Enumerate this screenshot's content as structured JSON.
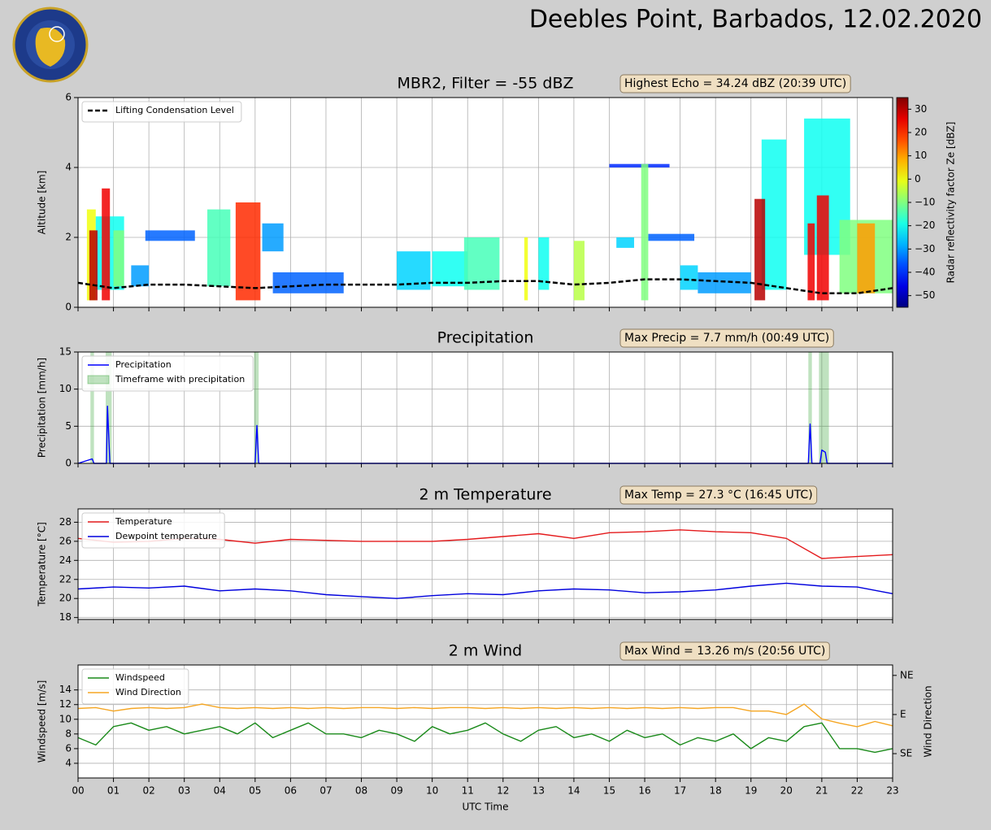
{
  "title": "Deebles Point, Barbados, 12.02.2020",
  "chart_data": [
    {
      "type": "heatmap",
      "title": "MBR2, Filter = -55 dBZ",
      "annotation": "Highest Echo = 34.24 dBZ (20:39 UTC)",
      "ylabel": "Altitude [km]",
      "xlim": [
        0,
        23
      ],
      "ylim": [
        0,
        6
      ],
      "yticks": [
        0,
        2,
        4,
        6
      ],
      "grid": true,
      "legend": "upper left",
      "colorbar": {
        "label": "Radar reflectivity factor Ze [dBZ]",
        "lim": [
          -55,
          35
        ],
        "colormap": "jet",
        "ticks": [
          30,
          20,
          10,
          0,
          {
            "value": -10,
            "label": "−10"
          },
          {
            "value": -20,
            "label": "−20"
          },
          {
            "value": -30,
            "label": "−30"
          },
          {
            "value": -40,
            "label": "−40"
          },
          {
            "value": -50,
            "label": "−50"
          }
        ]
      },
      "echoes": [
        {
          "x0": 0.25,
          "x1": 0.5,
          "bottom": 0.2,
          "top": 2.8,
          "value": 0
        },
        {
          "x0": 0.5,
          "x1": 1.3,
          "bottom": 0.5,
          "top": 2.6,
          "value": -20
        },
        {
          "x0": 1.0,
          "x1": 1.3,
          "bottom": 0.6,
          "top": 2.2,
          "value": -10
        },
        {
          "x0": 1.5,
          "x1": 2.0,
          "bottom": 0.6,
          "top": 1.2,
          "value": -30
        },
        {
          "x0": 1.9,
          "x1": 3.3,
          "bottom": 1.9,
          "top": 2.2,
          "value": -35
        },
        {
          "x0": 3.65,
          "x1": 4.3,
          "bottom": 0.6,
          "top": 2.8,
          "value": -15
        },
        {
          "x0": 5.2,
          "x1": 5.8,
          "bottom": 1.6,
          "top": 2.4,
          "value": -30
        },
        {
          "x0": 5.5,
          "x1": 7.5,
          "bottom": 0.4,
          "top": 1.0,
          "value": -35
        },
        {
          "x0": 9.0,
          "x1": 9.95,
          "bottom": 0.5,
          "top": 1.6,
          "value": -25
        },
        {
          "x0": 10.0,
          "x1": 11.0,
          "bottom": 0.6,
          "top": 1.6,
          "value": -20
        },
        {
          "x0": 10.9,
          "x1": 11.9,
          "bottom": 0.5,
          "top": 2.0,
          "value": -15
        },
        {
          "x0": 13.0,
          "x1": 13.3,
          "bottom": 0.5,
          "top": 2.0,
          "value": -20
        },
        {
          "x0": 15.2,
          "x1": 15.7,
          "bottom": 1.7,
          "top": 2.0,
          "value": -25
        },
        {
          "x0": 15.0,
          "x1": 16.7,
          "bottom": 4.0,
          "top": 4.1,
          "value": -40
        },
        {
          "x0": 16.1,
          "x1": 17.4,
          "bottom": 1.9,
          "top": 2.1,
          "value": -35
        },
        {
          "x0": 17.0,
          "x1": 17.5,
          "bottom": 0.5,
          "top": 1.2,
          "value": -25
        },
        {
          "x0": 17.5,
          "x1": 19.0,
          "bottom": 0.4,
          "top": 1.0,
          "value": -30
        },
        {
          "x0": 19.3,
          "x1": 20.0,
          "bottom": 0.5,
          "top": 4.8,
          "value": -20
        },
        {
          "x0": 20.5,
          "x1": 21.8,
          "bottom": 1.5,
          "top": 5.4,
          "value": -20
        },
        {
          "x0": 21.5,
          "x1": 23.0,
          "bottom": 0.4,
          "top": 2.5,
          "value": -10
        },
        {
          "x0": 12.6,
          "x1": 12.7,
          "bottom": 0.2,
          "top": 2.0,
          "value": 0
        },
        {
          "x0": 14.0,
          "x1": 14.3,
          "bottom": 0.2,
          "top": 1.9,
          "value": -5
        },
        {
          "x0": 15.9,
          "x1": 16.1,
          "bottom": 0.2,
          "top": 4.1,
          "value": -10
        },
        {
          "x0": 22.0,
          "x1": 22.5,
          "bottom": 0.4,
          "top": 2.4,
          "value": 10
        },
        {
          "x0": 0.32,
          "x1": 0.55,
          "bottom": 0.2,
          "top": 2.2,
          "value": 30
        },
        {
          "x0": 0.67,
          "x1": 0.9,
          "bottom": 0.2,
          "top": 3.4,
          "value": 25
        },
        {
          "x0": 4.45,
          "x1": 5.15,
          "bottom": 0.2,
          "top": 3.0,
          "value": 20
        },
        {
          "x0": 19.1,
          "x1": 19.4,
          "bottom": 0.2,
          "top": 3.1,
          "value": 30
        },
        {
          "x0": 20.6,
          "x1": 20.8,
          "bottom": 0.2,
          "top": 2.4,
          "value": 25
        },
        {
          "x0": 20.86,
          "x1": 21.2,
          "bottom": 0.2,
          "top": 3.2,
          "value": 25
        }
      ],
      "x": [
        0,
        1,
        2,
        3,
        4,
        5,
        6,
        7,
        8,
        9,
        10,
        11,
        12,
        13,
        14,
        15,
        16,
        17,
        18,
        19,
        20,
        21,
        22,
        23
      ],
      "series": [
        {
          "name": "Lifting Condensation Level",
          "color": "#000000",
          "linestyle": "dashed",
          "values": [
            0.7,
            0.55,
            0.65,
            0.65,
            0.6,
            0.55,
            0.6,
            0.65,
            0.65,
            0.65,
            0.7,
            0.7,
            0.75,
            0.75,
            0.65,
            0.7,
            0.8,
            0.8,
            0.75,
            0.7,
            0.55,
            0.4,
            0.4,
            0.55
          ]
        }
      ]
    },
    {
      "type": "line",
      "title": "Precipitation",
      "annotation": "Max Precip = 7.7 mm/h (00:49 UTC)",
      "ylabel": "Precipitation [mm/h]",
      "xlim": [
        0,
        23
      ],
      "ylim": [
        0,
        15
      ],
      "yticks": [
        0,
        5,
        10,
        15
      ],
      "grid": true,
      "legend": "upper left",
      "x": [
        0,
        0.4,
        0.45,
        0.8,
        0.83,
        0.9,
        5.0,
        5.05,
        5.1,
        20.62,
        20.67,
        20.72,
        20.95,
        21.0,
        21.1,
        21.15,
        23
      ],
      "series": [
        {
          "name": "Precipitation",
          "color": "#0000ff",
          "values": [
            0,
            0.6,
            0,
            0,
            7.7,
            0,
            0,
            5.1,
            0,
            0,
            5.3,
            0,
            0,
            1.8,
            1.5,
            0,
            0
          ]
        }
      ],
      "spans": {
        "name": "Timeframe with precipitation",
        "color": "#2ca02c",
        "ranges": [
          [
            0.35,
            0.45
          ],
          [
            0.78,
            0.95
          ],
          [
            4.97,
            5.1
          ],
          [
            20.62,
            20.72
          ],
          [
            20.92,
            21.2
          ]
        ]
      }
    },
    {
      "type": "line",
      "title": "2 m Temperature",
      "annotation": "Max Temp = 27.3 °C (16:45 UTC)",
      "ylabel": "Temperature [°C]",
      "xlim": [
        0,
        23
      ],
      "ylim": [
        17.8,
        29.4
      ],
      "yticks": [
        18,
        20,
        22,
        24,
        26,
        28
      ],
      "grid": true,
      "legend": "upper left",
      "x": [
        0,
        1,
        2,
        3,
        4,
        5,
        6,
        7,
        8,
        9,
        10,
        11,
        12,
        13,
        14,
        15,
        16,
        17,
        18,
        19,
        20,
        21,
        22,
        23
      ],
      "series": [
        {
          "name": "Temperature",
          "color": "#e41a1c",
          "values": [
            26.3,
            25.9,
            26.0,
            26.3,
            26.2,
            25.8,
            26.2,
            26.1,
            26.0,
            26.0,
            26.0,
            26.2,
            26.5,
            26.8,
            26.3,
            26.9,
            27.0,
            27.2,
            27.0,
            26.9,
            26.3,
            24.2,
            24.4,
            24.6
          ]
        },
        {
          "name": "Dewpoint temperature",
          "color": "#0000dd",
          "values": [
            21.0,
            21.2,
            21.1,
            21.3,
            20.8,
            21.0,
            20.8,
            20.4,
            20.2,
            20.0,
            20.3,
            20.5,
            20.4,
            20.8,
            21.0,
            20.9,
            20.6,
            20.7,
            20.9,
            21.3,
            21.6,
            21.3,
            21.2,
            20.5
          ]
        }
      ]
    },
    {
      "type": "line",
      "title": "2 m Wind",
      "annotation": "Max Wind = 13.26 m/s (20:56 UTC)",
      "ylabel": "Windspeed [m/s]",
      "y2label": "Wind Direction",
      "xlabel": "UTC Time",
      "xlim": [
        0,
        23
      ],
      "ylim": [
        2,
        17.4
      ],
      "yticks": [
        4,
        6,
        8,
        10,
        12,
        14
      ],
      "y2lim": [
        163,
        33
      ],
      "y2ticks": [
        {
          "value": 45,
          "label": "NE"
        },
        {
          "value": 90,
          "label": "E"
        },
        {
          "value": 135,
          "label": "SE"
        }
      ],
      "grid": true,
      "legend": "upper left",
      "xticks": [
        {
          "value": 0,
          "label": "00"
        },
        {
          "value": 1,
          "label": "01"
        },
        {
          "value": 2,
          "label": "02"
        },
        {
          "value": 3,
          "label": "03"
        },
        {
          "value": 4,
          "label": "04"
        },
        {
          "value": 5,
          "label": "05"
        },
        {
          "value": 6,
          "label": "06"
        },
        {
          "value": 7,
          "label": "07"
        },
        {
          "value": 8,
          "label": "08"
        },
        {
          "value": 9,
          "label": "09"
        },
        {
          "value": 10,
          "label": "10"
        },
        {
          "value": 11,
          "label": "11"
        },
        {
          "value": 12,
          "label": "12"
        },
        {
          "value": 13,
          "label": "13"
        },
        {
          "value": 14,
          "label": "14"
        },
        {
          "value": 15,
          "label": "15"
        },
        {
          "value": 16,
          "label": "16"
        },
        {
          "value": 17,
          "label": "17"
        },
        {
          "value": 18,
          "label": "18"
        },
        {
          "value": 19,
          "label": "19"
        },
        {
          "value": 20,
          "label": "20"
        },
        {
          "value": 21,
          "label": "21"
        },
        {
          "value": 22,
          "label": "22"
        },
        {
          "value": 23,
          "label": "23"
        }
      ],
      "x": [
        0,
        0.5,
        1,
        1.5,
        2,
        2.5,
        3,
        3.5,
        4,
        4.5,
        5,
        5.5,
        6,
        6.5,
        7,
        7.5,
        8,
        8.5,
        9,
        9.5,
        10,
        10.5,
        11,
        11.5,
        12,
        12.5,
        13,
        13.5,
        14,
        14.5,
        15,
        15.5,
        16,
        16.5,
        17,
        17.5,
        18,
        18.5,
        19,
        19.5,
        20,
        20.5,
        21,
        21.5,
        22,
        22.5,
        23
      ],
      "series": [
        {
          "name": "Windspeed",
          "color": "#1a8a1a",
          "values": [
            7.5,
            6.5,
            9,
            9.5,
            8.5,
            9,
            8,
            8.5,
            9,
            8,
            9.5,
            7.5,
            8.5,
            9.5,
            8,
            8,
            7.5,
            8.5,
            8,
            7,
            9,
            8,
            8.5,
            9.5,
            8,
            7,
            8.5,
            9,
            7.5,
            8,
            7,
            8.5,
            7.5,
            8,
            6.5,
            7.5,
            7,
            8,
            6,
            7.5,
            7,
            9,
            9.5,
            6,
            6,
            5.5,
            6
          ]
        },
        {
          "name": "Wind Direction",
          "color": "#f5a623",
          "axis": "y2",
          "values": [
            83,
            82,
            86,
            83,
            82,
            83,
            82,
            78,
            82,
            83,
            82,
            83,
            82,
            83,
            82,
            83,
            82,
            82,
            83,
            82,
            83,
            82,
            82,
            83,
            82,
            83,
            82,
            83,
            82,
            83,
            82,
            83,
            82,
            83,
            82,
            83,
            82,
            82,
            86,
            86,
            90,
            78,
            95,
            100,
            104,
            98,
            103
          ]
        }
      ]
    }
  ]
}
